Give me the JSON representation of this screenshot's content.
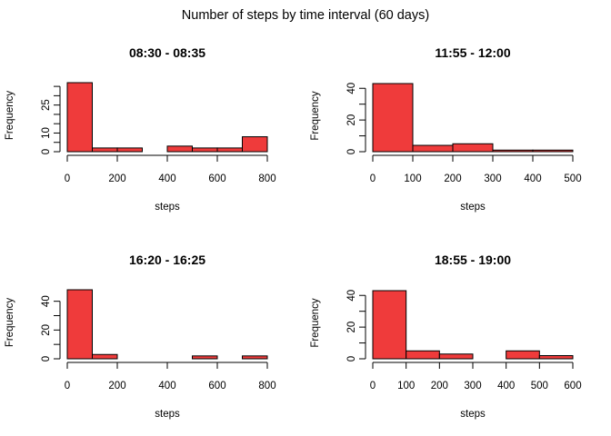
{
  "title": "Number of steps by time interval (60 days)",
  "bar_color": "#EF3B3B",
  "chart_data": [
    {
      "type": "bar",
      "title": "08:30 - 08:35",
      "xlabel": "steps",
      "ylabel": "Frequency",
      "bin_edges": [
        0,
        100,
        200,
        300,
        400,
        500,
        600,
        700,
        800
      ],
      "values": [
        37,
        2,
        2,
        0,
        3,
        2,
        2,
        8
      ],
      "xlim": [
        0,
        800
      ],
      "xticks": [
        0,
        200,
        400,
        600,
        800
      ],
      "ylim": [
        0,
        37
      ],
      "yticks": [
        0,
        5,
        10,
        15,
        20,
        25,
        30,
        35
      ],
      "ytick_labels": [
        "0",
        "",
        "10",
        "",
        "",
        "25",
        "",
        ""
      ],
      "grid": false
    },
    {
      "type": "bar",
      "title": "11:55 - 12:00",
      "xlabel": "steps",
      "ylabel": "Frequency",
      "bin_edges": [
        0,
        100,
        200,
        300,
        400,
        500
      ],
      "values": [
        43,
        4,
        5,
        1,
        1
      ],
      "xlim": [
        0,
        500
      ],
      "xticks": [
        0,
        100,
        200,
        300,
        400,
        500
      ],
      "ylim": [
        0,
        43
      ],
      "yticks": [
        0,
        10,
        20,
        30,
        40
      ],
      "ytick_labels": [
        "0",
        "",
        "20",
        "",
        "40"
      ],
      "grid": false
    },
    {
      "type": "bar",
      "title": "16:20 - 16:25",
      "xlabel": "steps",
      "ylabel": "Frequency",
      "bin_edges": [
        0,
        100,
        200,
        300,
        400,
        500,
        600,
        700,
        800
      ],
      "values": [
        48,
        3,
        0,
        0,
        0,
        2,
        0,
        2
      ],
      "xlim": [
        0,
        800
      ],
      "xticks": [
        0,
        200,
        400,
        600,
        800
      ],
      "ylim": [
        0,
        48
      ],
      "yticks": [
        0,
        10,
        20,
        30,
        40
      ],
      "ytick_labels": [
        "0",
        "",
        "20",
        "",
        "40"
      ],
      "grid": false
    },
    {
      "type": "bar",
      "title": "18:55 - 19:00",
      "xlabel": "steps",
      "ylabel": "Frequency",
      "bin_edges": [
        0,
        100,
        200,
        300,
        400,
        500,
        600
      ],
      "values": [
        43,
        5,
        3,
        0,
        5,
        2
      ],
      "xlim": [
        0,
        600
      ],
      "xticks": [
        0,
        100,
        200,
        300,
        400,
        500,
        600
      ],
      "ylim": [
        0,
        43
      ],
      "yticks": [
        0,
        10,
        20,
        30,
        40
      ],
      "ytick_labels": [
        "0",
        "",
        "20",
        "",
        "40"
      ],
      "grid": false
    }
  ]
}
